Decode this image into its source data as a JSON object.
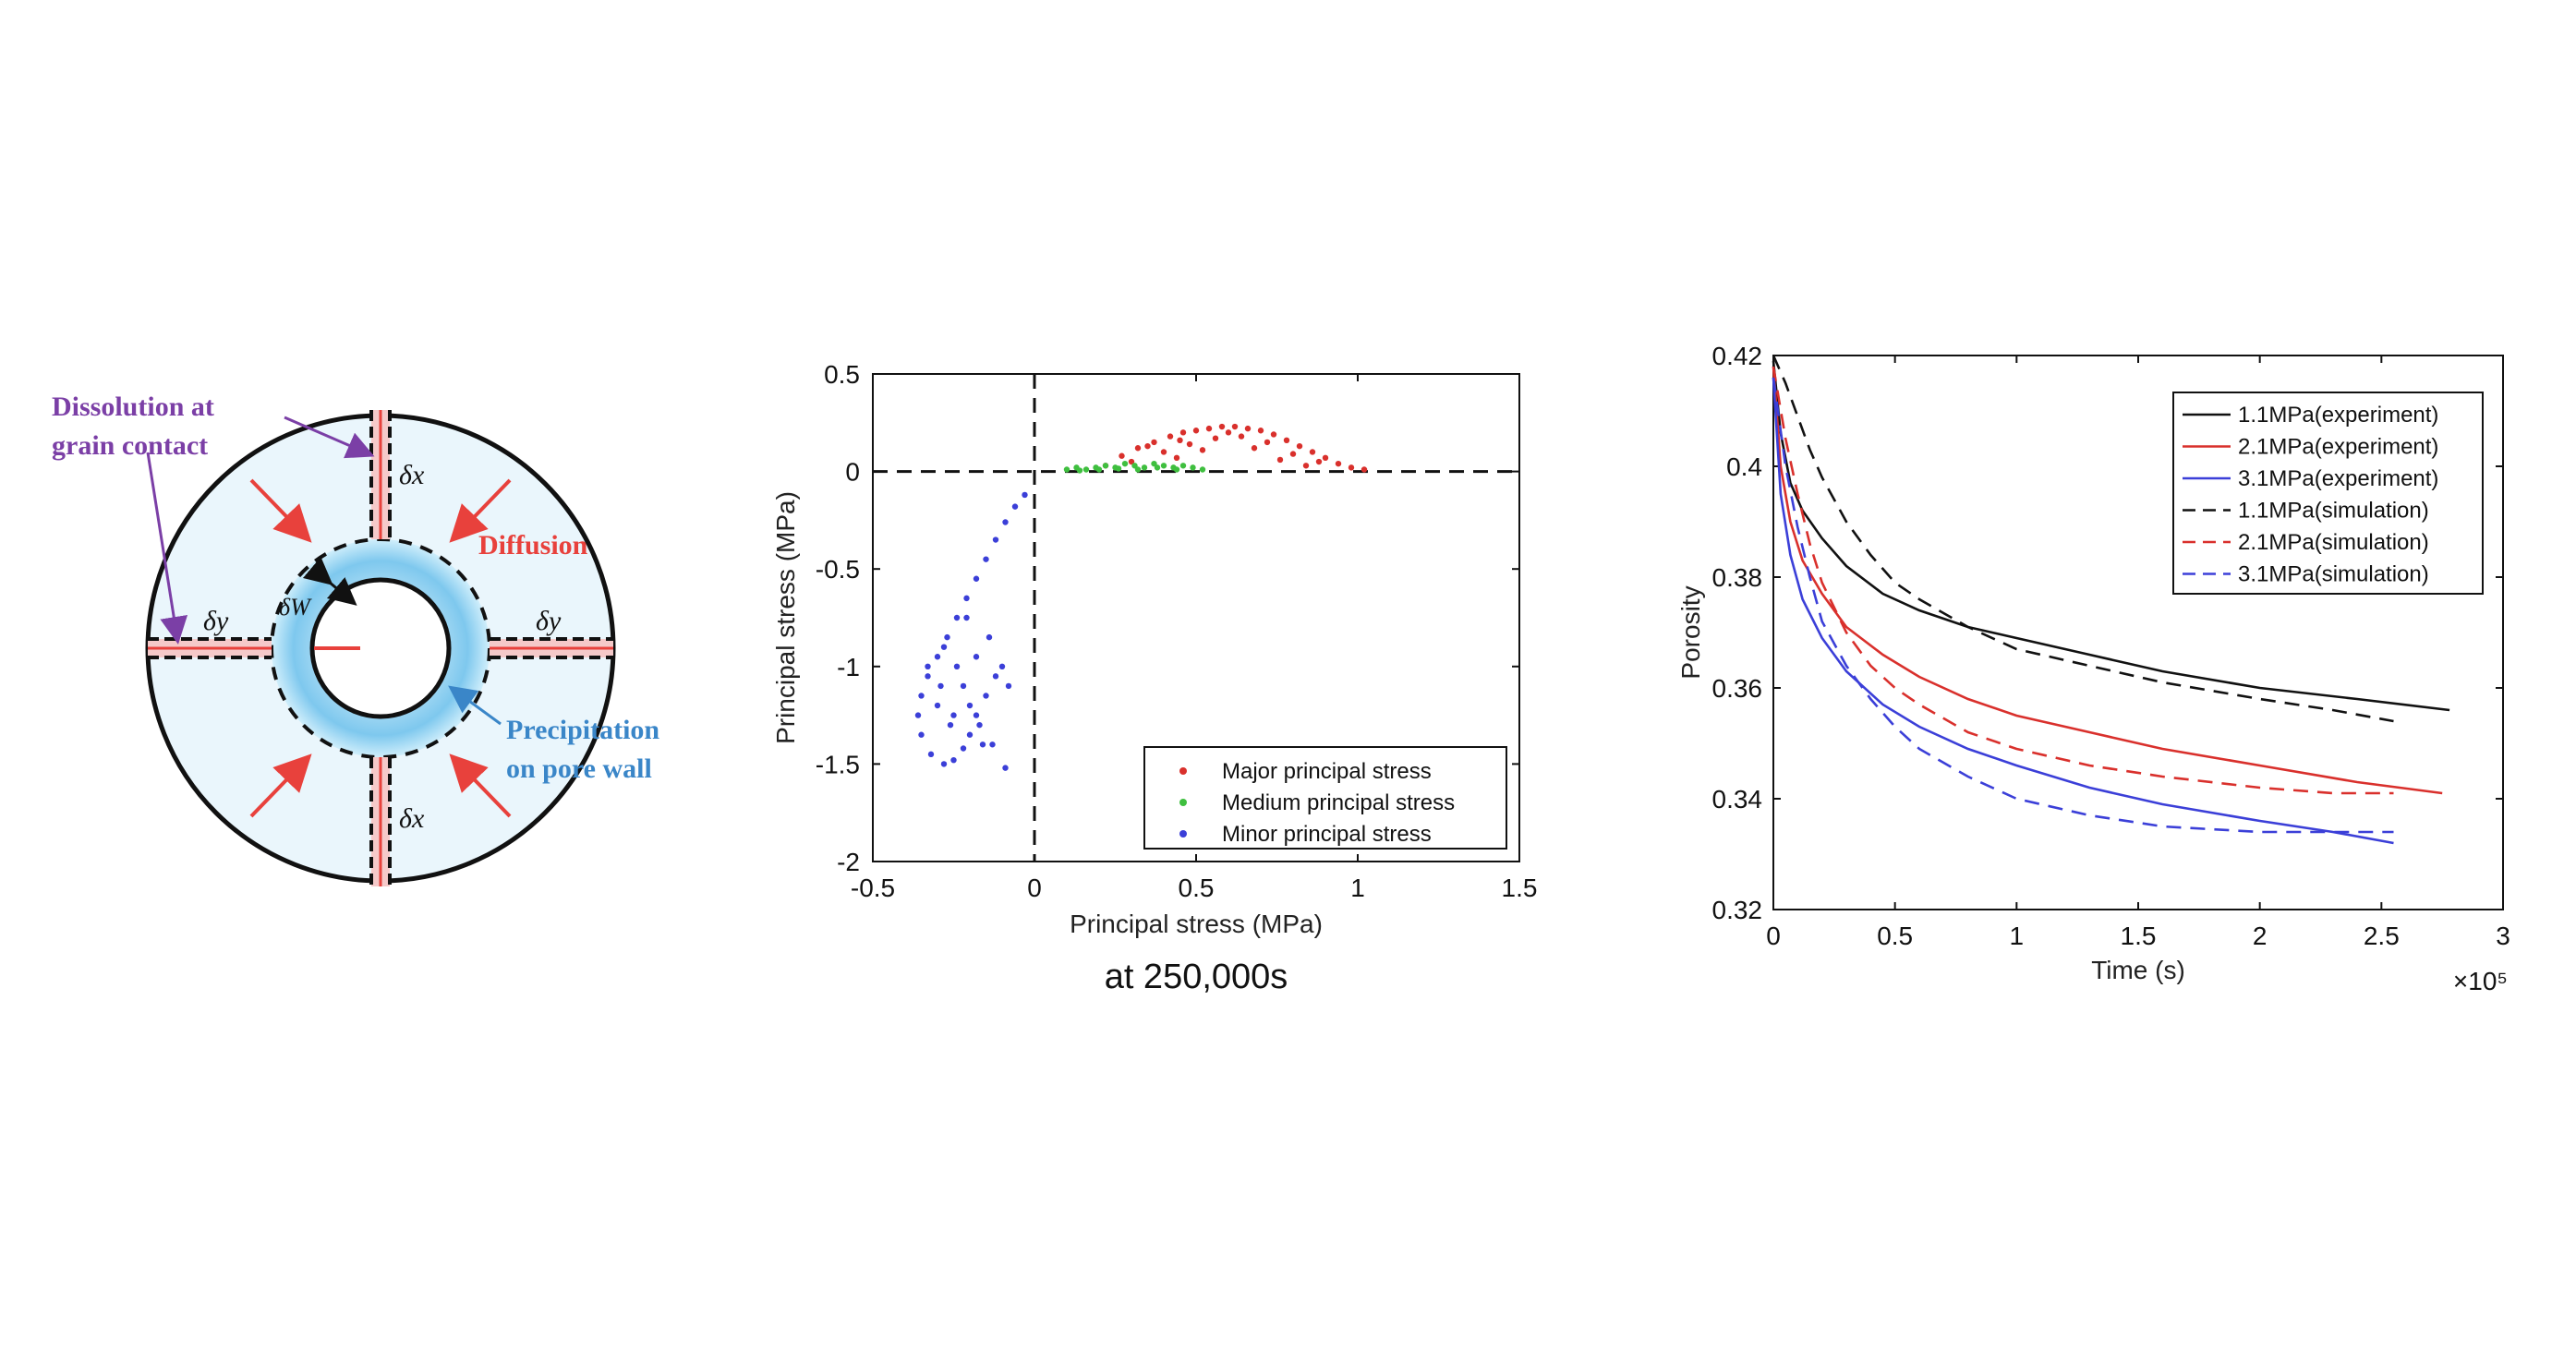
{
  "diagram": {
    "labels": {
      "dissolution_line1": "Dissolution at",
      "dissolution_line2": "grain contact",
      "diffusion": "Diffusion",
      "precip_line1": "Precipitation",
      "precip_line2": "on pore wall",
      "dx_top": "δx",
      "dx_bottom": "δx",
      "dy_left": "δy",
      "dy_right": "δy",
      "dw": "δW"
    },
    "colors": {
      "fill": "#eaf6fc",
      "ring": "#7ec8ee",
      "arrow": "#e8413c",
      "purple": "#7b3fa6",
      "blue": "#3a86c8"
    }
  },
  "chart_data": [
    {
      "type": "scatter",
      "title": "",
      "caption": "at 250,000s",
      "xlabel": "Principal stress (MPa)",
      "ylabel": "Principal stress (MPa)",
      "xlim": [
        -0.5,
        1.5
      ],
      "ylim": [
        -2,
        0.5
      ],
      "xticks": [
        "-0.5",
        "0",
        "0.5",
        "1",
        "1.5"
      ],
      "yticks": [
        "0.5",
        "0",
        "-0.5",
        "-1",
        "-1.5",
        "-2"
      ],
      "reference_lines": {
        "x": 0,
        "y": 0
      },
      "legend_position": "bottom-right",
      "series": [
        {
          "name": "Major principal stress",
          "color": "#d9302c",
          "x": [
            0.22,
            0.27,
            0.32,
            0.37,
            0.42,
            0.46,
            0.5,
            0.54,
            0.58,
            0.62,
            0.66,
            0.7,
            0.74,
            0.78,
            0.82,
            0.86,
            0.9,
            0.94,
            0.98,
            1.02,
            0.3,
            0.4,
            0.48,
            0.56,
            0.64,
            0.72,
            0.8,
            0.88,
            0.35,
            0.45,
            0.6,
            0.68,
            0.76,
            0.84,
            0.52,
            0.44
          ],
          "y": [
            0.03,
            0.08,
            0.12,
            0.15,
            0.18,
            0.2,
            0.21,
            0.22,
            0.23,
            0.23,
            0.22,
            0.21,
            0.19,
            0.16,
            0.13,
            0.1,
            0.07,
            0.04,
            0.02,
            0.01,
            0.05,
            0.1,
            0.14,
            0.17,
            0.18,
            0.15,
            0.09,
            0.05,
            0.13,
            0.16,
            0.2,
            0.12,
            0.06,
            0.03,
            0.11,
            0.07
          ]
        },
        {
          "name": "Medium principal stress",
          "color": "#3fbf3f",
          "x": [
            0.1,
            0.13,
            0.16,
            0.19,
            0.22,
            0.25,
            0.28,
            0.31,
            0.34,
            0.37,
            0.4,
            0.43,
            0.46,
            0.49,
            0.52,
            0.14,
            0.2,
            0.26,
            0.32,
            0.38,
            0.44
          ],
          "y": [
            0.01,
            0.02,
            0.01,
            0.02,
            0.03,
            0.02,
            0.04,
            0.03,
            0.02,
            0.04,
            0.03,
            0.02,
            0.03,
            0.02,
            0.01,
            0.005,
            0.01,
            0.015,
            0.01,
            0.02,
            0.01
          ]
        },
        {
          "name": "Minor principal stress",
          "color": "#3b3fd8",
          "x": [
            -0.03,
            -0.06,
            -0.09,
            -0.12,
            -0.15,
            -0.18,
            -0.21,
            -0.24,
            -0.27,
            -0.3,
            -0.33,
            -0.35,
            -0.36,
            -0.35,
            -0.32,
            -0.28,
            -0.25,
            -0.22,
            -0.2,
            -0.18,
            -0.15,
            -0.12,
            -0.1,
            -0.08,
            -0.3,
            -0.26,
            -0.22,
            -0.18,
            -0.14,
            -0.28,
            -0.24,
            -0.2,
            -0.16,
            -0.33,
            -0.29,
            -0.25,
            -0.21,
            -0.17,
            -0.13,
            -0.09
          ],
          "y": [
            -0.12,
            -0.18,
            -0.26,
            -0.35,
            -0.45,
            -0.55,
            -0.65,
            -0.75,
            -0.85,
            -0.95,
            -1.05,
            -1.15,
            -1.25,
            -1.35,
            -1.45,
            -1.5,
            -1.48,
            -1.42,
            -1.35,
            -1.25,
            -1.15,
            -1.05,
            -1.0,
            -1.1,
            -1.2,
            -1.3,
            -1.1,
            -0.95,
            -0.85,
            -0.9,
            -1.0,
            -1.2,
            -1.4,
            -1.0,
            -1.1,
            -1.25,
            -0.75,
            -1.3,
            -1.4,
            -1.52
          ]
        }
      ]
    },
    {
      "type": "line",
      "title": "",
      "xlabel": "Time (s)",
      "ylabel": "Porosity",
      "x_multiplier": "×10⁵",
      "xlim": [
        0,
        3
      ],
      "ylim": [
        0.32,
        0.42
      ],
      "xticks": [
        "0",
        "0.5",
        "1",
        "1.5",
        "2",
        "2.5",
        "3"
      ],
      "yticks": [
        "0.42",
        "0.4",
        "0.38",
        "0.36",
        "0.34",
        "0.32"
      ],
      "legend_position": "top-right",
      "series": [
        {
          "name": "1.1MPa(experiment)",
          "color": "#111111",
          "dash": "solid",
          "x": [
            0,
            0.03,
            0.07,
            0.12,
            0.2,
            0.3,
            0.45,
            0.6,
            0.8,
            1.0,
            1.3,
            1.6,
            2.0,
            2.4,
            2.78
          ],
          "y": [
            0.419,
            0.406,
            0.397,
            0.392,
            0.387,
            0.382,
            0.377,
            0.374,
            0.371,
            0.369,
            0.366,
            0.363,
            0.36,
            0.358,
            0.356
          ]
        },
        {
          "name": "2.1MPa(experiment)",
          "color": "#d9302c",
          "dash": "solid",
          "x": [
            0,
            0.03,
            0.07,
            0.12,
            0.2,
            0.3,
            0.45,
            0.6,
            0.8,
            1.0,
            1.3,
            1.6,
            2.0,
            2.4,
            2.75
          ],
          "y": [
            0.418,
            0.4,
            0.39,
            0.383,
            0.377,
            0.371,
            0.366,
            0.362,
            0.358,
            0.355,
            0.352,
            0.349,
            0.346,
            0.343,
            0.341
          ]
        },
        {
          "name": "3.1MPa(experiment)",
          "color": "#3b3fd8",
          "dash": "solid",
          "x": [
            0,
            0.03,
            0.07,
            0.12,
            0.2,
            0.3,
            0.45,
            0.6,
            0.8,
            1.0,
            1.3,
            1.6,
            2.0,
            2.3,
            2.55
          ],
          "y": [
            0.416,
            0.395,
            0.384,
            0.376,
            0.369,
            0.363,
            0.357,
            0.353,
            0.349,
            0.346,
            0.342,
            0.339,
            0.336,
            0.334,
            0.332
          ]
        },
        {
          "name": "1.1MPa(simulation)",
          "color": "#111111",
          "dash": "dashed",
          "x": [
            0,
            0.05,
            0.1,
            0.15,
            0.2,
            0.3,
            0.4,
            0.5,
            0.6,
            0.8,
            1.0,
            1.3,
            1.6,
            2.0,
            2.3,
            2.55
          ],
          "y": [
            0.42,
            0.415,
            0.409,
            0.403,
            0.398,
            0.39,
            0.384,
            0.379,
            0.376,
            0.371,
            0.367,
            0.364,
            0.361,
            0.358,
            0.356,
            0.354
          ]
        },
        {
          "name": "2.1MPa(simulation)",
          "color": "#d9302c",
          "dash": "dashed",
          "x": [
            0,
            0.05,
            0.1,
            0.15,
            0.2,
            0.3,
            0.4,
            0.5,
            0.6,
            0.8,
            1.0,
            1.3,
            1.6,
            2.0,
            2.3,
            2.55
          ],
          "y": [
            0.418,
            0.405,
            0.395,
            0.386,
            0.379,
            0.37,
            0.364,
            0.36,
            0.357,
            0.352,
            0.349,
            0.346,
            0.344,
            0.342,
            0.341,
            0.341
          ]
        },
        {
          "name": "3.1MPa(simulation)",
          "color": "#3b3fd8",
          "dash": "dashed",
          "x": [
            0,
            0.05,
            0.1,
            0.15,
            0.2,
            0.3,
            0.4,
            0.5,
            0.6,
            0.8,
            1.0,
            1.3,
            1.6,
            2.0,
            2.3,
            2.55
          ],
          "y": [
            0.416,
            0.4,
            0.389,
            0.38,
            0.372,
            0.364,
            0.358,
            0.353,
            0.349,
            0.344,
            0.34,
            0.337,
            0.335,
            0.334,
            0.334,
            0.334
          ]
        }
      ]
    }
  ]
}
